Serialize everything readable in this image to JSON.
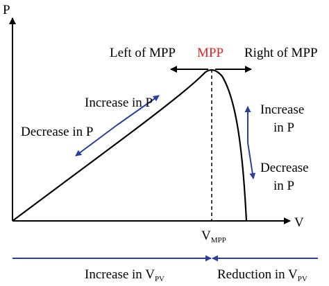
{
  "axes": {
    "y_label": "P",
    "x_label": "V"
  },
  "vmpp": {
    "main": "V",
    "sub": "MPP"
  },
  "mpp_label": "MPP",
  "left_label": "Left of MPP",
  "right_label": "Right of MPP",
  "left_increase": "Increase in P",
  "left_decrease": "Decrease in P",
  "right_increase": [
    "Increase",
    "in P"
  ],
  "right_decrease": [
    "Decrease",
    "in P"
  ],
  "bottom_left": {
    "main": "Increase in V",
    "sub": "PV"
  },
  "bottom_right": {
    "main": "Reduction in V",
    "sub": "PV"
  },
  "colors": {
    "axis": "#000000",
    "curve": "#000000",
    "arrow_blue": "#2b3f9e",
    "mpp_red": "#e0221c"
  }
}
